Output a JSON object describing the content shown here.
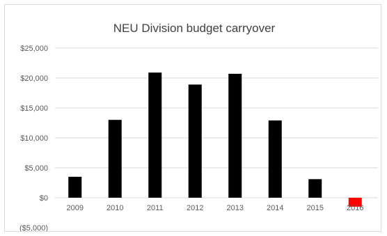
{
  "chart_data": {
    "type": "bar",
    "title": "NEU Division budget carryover",
    "categories": [
      "2009",
      "2010",
      "2011",
      "2012",
      "2013",
      "2014",
      "2015",
      "2016"
    ],
    "values": [
      3500,
      13000,
      20900,
      18900,
      20700,
      12900,
      3100,
      -1500
    ],
    "y_ticks": [
      {
        "value": 25000,
        "label": "$25,000"
      },
      {
        "value": 20000,
        "label": "$20,000"
      },
      {
        "value": 15000,
        "label": "$15,000"
      },
      {
        "value": 10000,
        "label": "$10,000"
      },
      {
        "value": 5000,
        "label": "$5,000"
      },
      {
        "value": 0,
        "label": "$0"
      },
      {
        "value": -5000,
        "label": "($5,000)"
      }
    ],
    "ylim": [
      -5000,
      25000
    ],
    "xlabel": "",
    "ylabel": "",
    "grid": true,
    "legend": "none",
    "colors": {
      "bar": "#000000",
      "negative_bar": "#ff0000",
      "negative_tick": "#ff0000",
      "grid": "#d9d9d9"
    }
  }
}
